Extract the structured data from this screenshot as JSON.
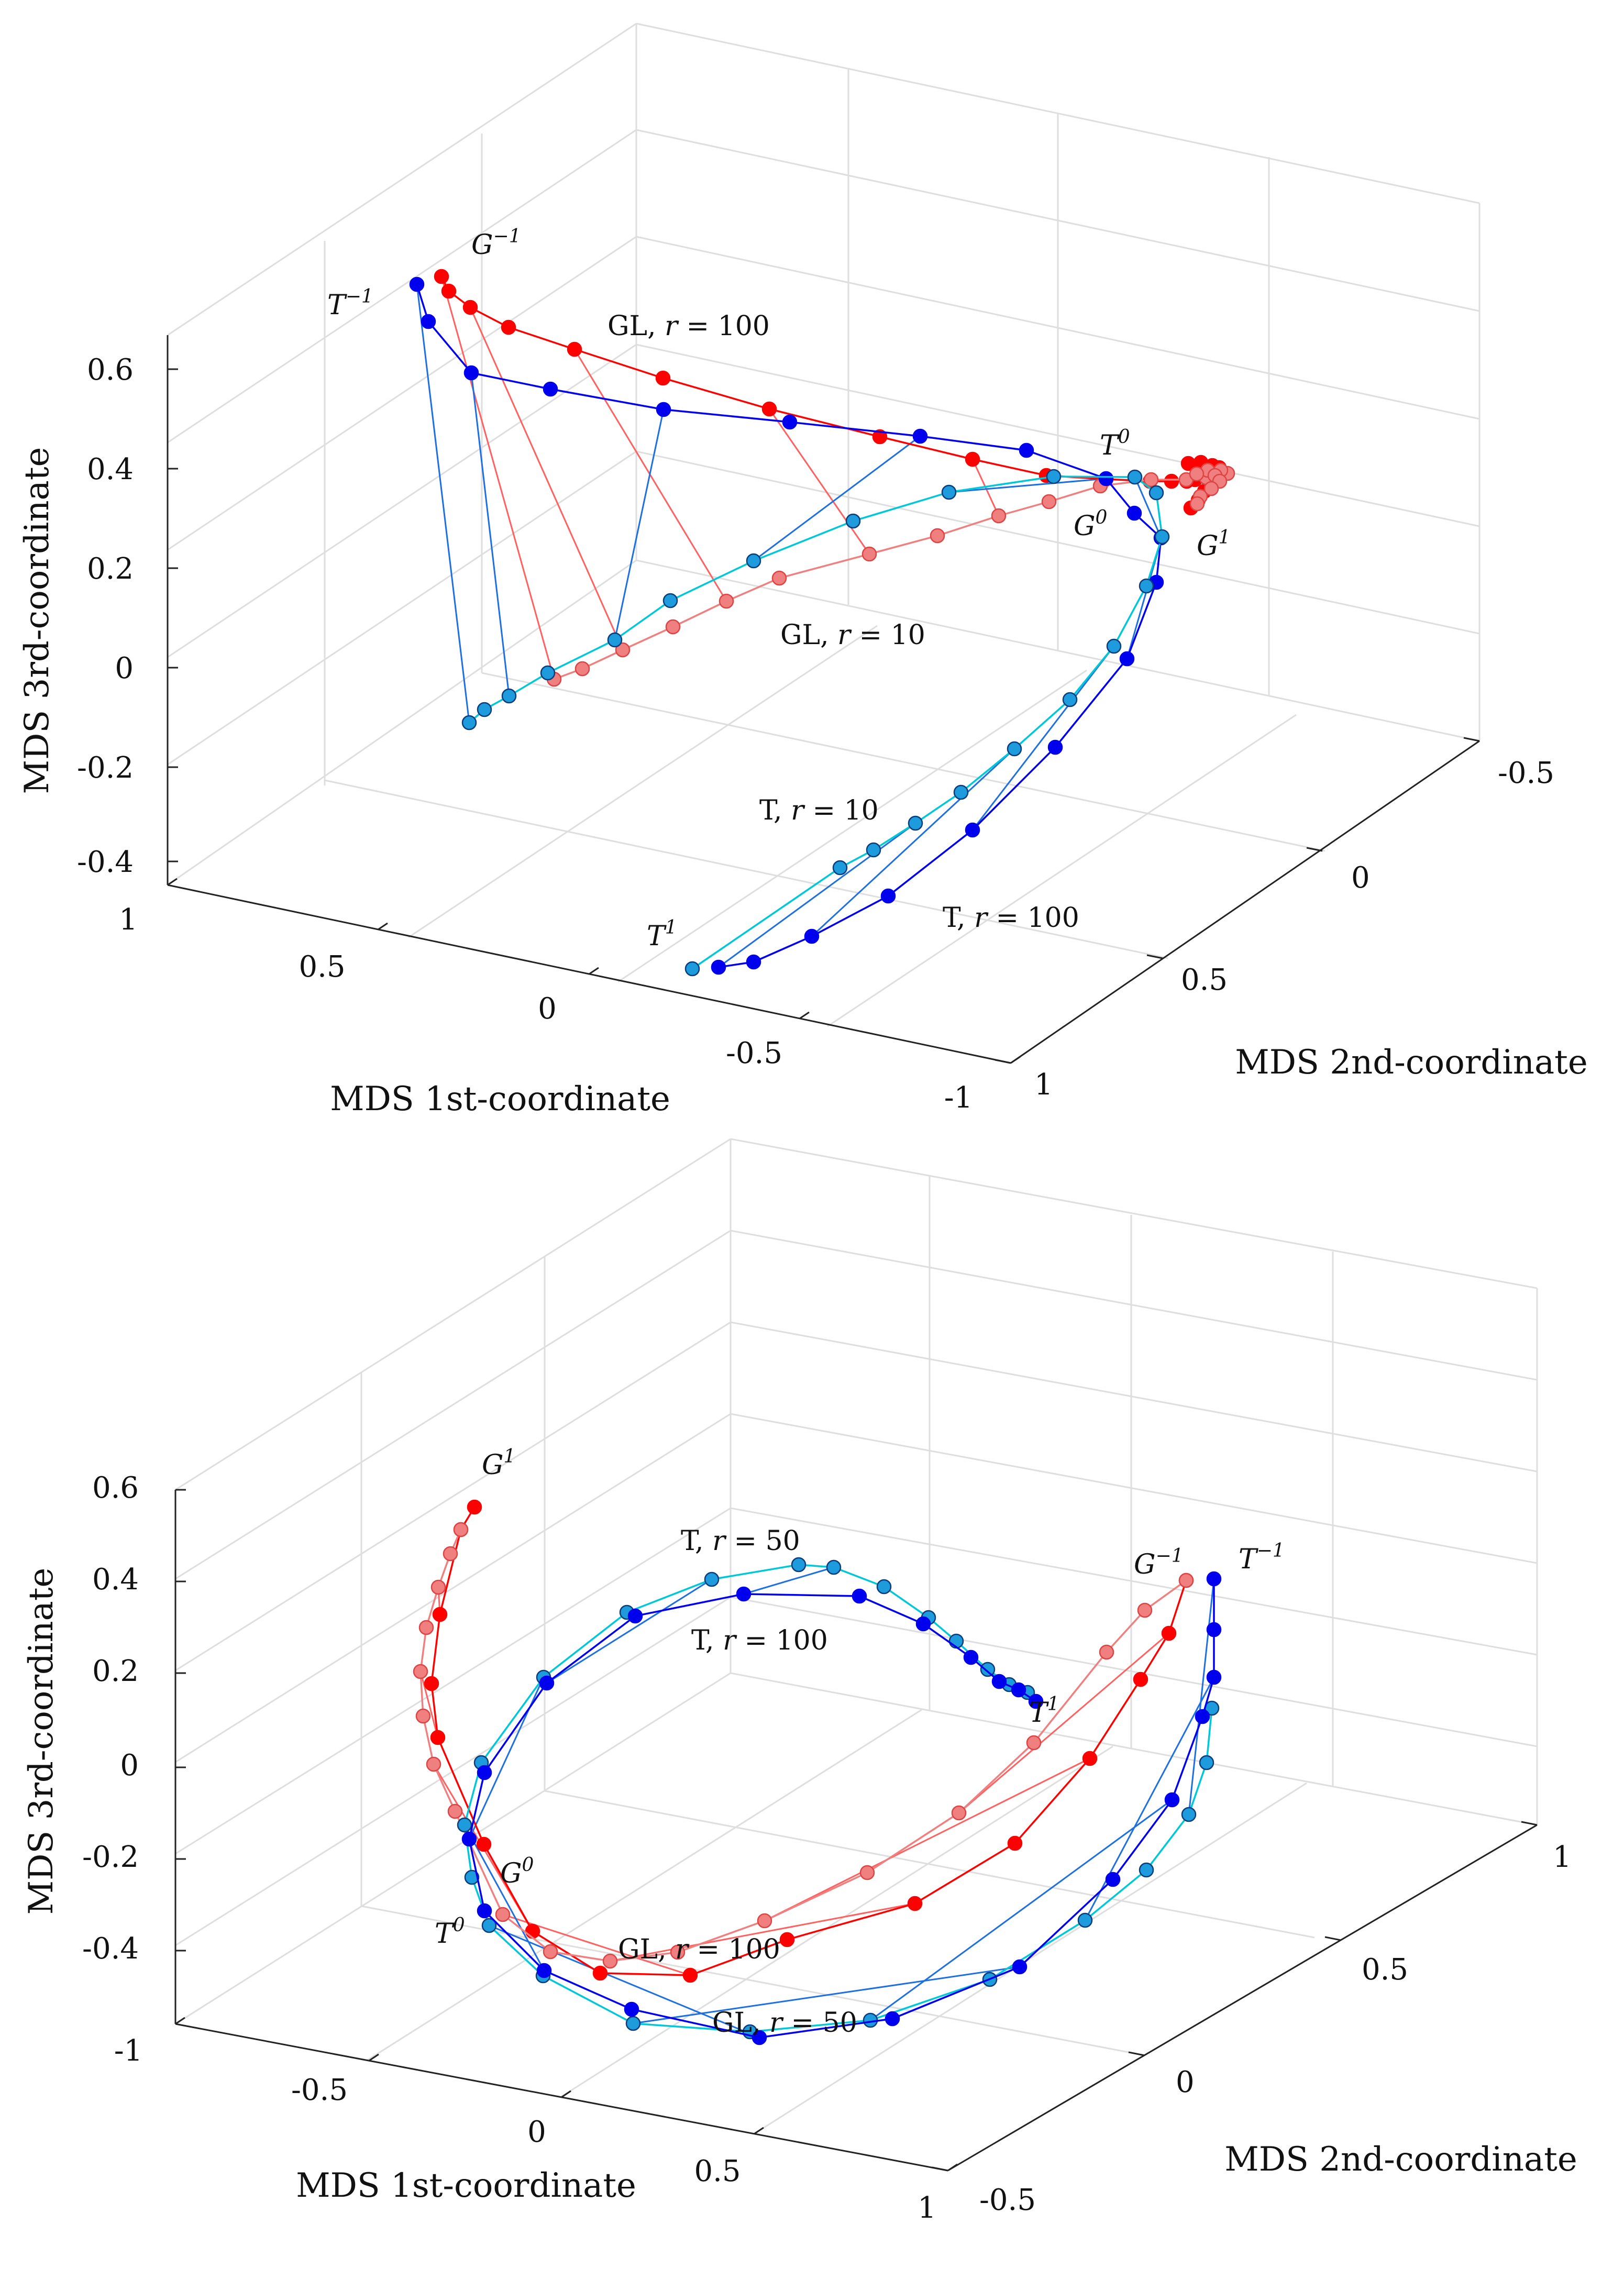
{
  "colors": {
    "gl_high_r": "#ff0000",
    "gl_low_r": "#f08080",
    "t_high_r": "#0000ee",
    "t_low_r": "#1e9bdc",
    "t_low_r_curve": "#00c8d8",
    "gl_link": "#ff6060",
    "t_link": "#1e6fe0",
    "grid": "#dedede",
    "axis": "#222222"
  },
  "chart_data": [
    {
      "type": "scatter",
      "projection": "3d",
      "xlabel": "MDS 1st-coordinate",
      "ylabel": "MDS 2nd-coordinate",
      "zlabel": "MDS 3rd-coordinate",
      "x_ticks": [
        "1",
        "0.5",
        "0",
        "-0.5",
        "-1"
      ],
      "y_ticks": [
        "-0.5",
        "0",
        "0.5",
        "1"
      ],
      "z_ticks": [
        "0.6",
        "0.4",
        "0.2",
        "0",
        "-0.2",
        "-0.4"
      ],
      "grid": true,
      "annotations": {
        "g_end": {
          "base": "G",
          "sup": "−1"
        },
        "t_end": {
          "base": "T",
          "sup": "−1"
        },
        "t_zero": {
          "base": "T",
          "sup": "0"
        },
        "g_zero": {
          "base": "G",
          "sup": "0"
        },
        "g_one": {
          "base": "G",
          "sup": "1"
        },
        "t_one": {
          "base": "T",
          "sup": "1"
        },
        "gl_high": {
          "prefix": "GL, ",
          "var": "r",
          "value": " = 100"
        },
        "gl_low": {
          "prefix": "GL, ",
          "var": "r",
          "value": " = 10"
        },
        "t_low": {
          "prefix": "T, ",
          "var": "r",
          "value": " = 10"
        },
        "t_high": {
          "prefix": "T, ",
          "var": "r",
          "value": " = 100"
        }
      },
      "series": [
        {
          "name": "GL, r = 100",
          "points": [
            [
              843,
              528
            ],
            [
              857,
              556
            ],
            [
              898,
              587
            ],
            [
              971,
              625
            ],
            [
              1097,
              667
            ],
            [
              1266,
              722
            ],
            [
              1469,
              781
            ],
            [
              1680,
              834
            ],
            [
              1857,
              877
            ],
            [
              1998,
              908
            ],
            [
              2112,
              915
            ],
            [
              2196,
              919
            ],
            [
              2237,
              919
            ],
            [
              2266,
              919
            ],
            [
              2282,
              916
            ],
            [
              2303,
              907
            ],
            [
              2327,
              898
            ],
            [
              2328,
              893
            ],
            [
              2315,
              889
            ],
            [
              2293,
              883
            ],
            [
              2269,
              885
            ],
            [
              2310,
              907
            ],
            [
              2319,
              921
            ],
            [
              2300,
              938
            ],
            [
              2288,
              955
            ],
            [
              2274,
              970
            ]
          ]
        },
        {
          "name": "GL, r = 10",
          "points": [
            [
              1058,
              1297
            ],
            [
              1112,
              1277
            ],
            [
              1189,
              1241
            ],
            [
              1285,
              1197
            ],
            [
              1387,
              1148
            ],
            [
              1488,
              1104
            ],
            [
              1660,
              1058
            ],
            [
              1790,
              1023
            ],
            [
              1907,
              985
            ],
            [
              2003,
              958
            ],
            [
              2101,
              928
            ],
            [
              2198,
              916
            ],
            [
              2265,
              916
            ],
            [
              2303,
              912
            ],
            [
              2329,
              909
            ],
            [
              2344,
              904
            ],
            [
              2331,
              898
            ],
            [
              2306,
              898
            ],
            [
              2285,
              905
            ],
            [
              2320,
              908
            ],
            [
              2329,
              919
            ],
            [
              2313,
              933
            ],
            [
              2292,
              948
            ],
            [
              2286,
              962
            ]
          ]
        },
        {
          "name": "T, r = 100",
          "points": [
            [
              796,
              543
            ],
            [
              818,
              614
            ],
            [
              900,
              712
            ],
            [
              1051,
              743
            ],
            [
              1267,
              782
            ],
            [
              1508,
              806
            ],
            [
              1757,
              833
            ],
            [
              1960,
              860
            ],
            [
              2112,
              914
            ],
            [
              2166,
              980
            ],
            [
              2217,
              1027
            ],
            [
              2208,
              1112
            ],
            [
              2152,
              1258
            ],
            [
              2015,
              1427
            ],
            [
              1857,
              1585
            ],
            [
              1696,
              1711
            ],
            [
              1550,
              1788
            ],
            [
              1439,
              1837
            ],
            [
              1372,
              1847
            ]
          ]
        },
        {
          "name": "T, r = 10",
          "points": [
            [
              896,
              1380
            ],
            [
              925,
              1355
            ],
            [
              972,
              1329
            ],
            [
              1046,
              1285
            ],
            [
              1174,
              1222
            ],
            [
              1280,
              1147
            ],
            [
              1439,
              1071
            ],
            [
              1629,
              995
            ],
            [
              1812,
              940
            ],
            [
              2012,
              910
            ],
            [
              2167,
              911
            ],
            [
              2208,
              941
            ],
            [
              2219,
              1025
            ],
            [
              2189,
              1119
            ],
            [
              2127,
              1234
            ],
            [
              2043,
              1336
            ],
            [
              1937,
              1430
            ],
            [
              1835,
              1513
            ],
            [
              1748,
              1572
            ],
            [
              1668,
              1623
            ],
            [
              1604,
              1657
            ],
            [
              1322,
              1850
            ]
          ]
        }
      ]
    },
    {
      "type": "scatter",
      "projection": "3d",
      "xlabel": "MDS 1st-coordinate",
      "ylabel": "MDS 2nd-coordinate",
      "zlabel": "MDS 3rd-coordinate",
      "x_ticks": [
        "-1",
        "-0.5",
        "0",
        "0.5",
        "1"
      ],
      "y_ticks": [
        "1",
        "0.5",
        "0",
        "-0.5"
      ],
      "z_ticks": [
        "0.6",
        "0.4",
        "0.2",
        "0",
        "-0.2",
        "-0.4"
      ],
      "grid": true,
      "annotations": {
        "g_one": {
          "base": "G",
          "sup": "1"
        },
        "g_end": {
          "base": "G",
          "sup": "−1"
        },
        "t_end": {
          "base": "T",
          "sup": "−1"
        },
        "t_one": {
          "base": "T",
          "sup": "1"
        },
        "g_zero": {
          "base": "G",
          "sup": "0"
        },
        "t_zero": {
          "base": "T",
          "sup": "0"
        },
        "t_low": {
          "prefix": "T, ",
          "var": "r",
          "value": " = 50"
        },
        "t_high": {
          "prefix": "T, ",
          "var": "r",
          "value": " = 100"
        },
        "gl_high": {
          "prefix": "GL, ",
          "var": "r",
          "value": " = 100"
        },
        "gl_low": {
          "prefix": "GL, ",
          "var": "r",
          "value": " = 50"
        }
      },
      "series": [
        {
          "name": "GL, r = 100",
          "points": [
            [
              906,
              2878
            ],
            [
              880,
              2921
            ],
            [
              840,
              3083
            ],
            [
              824,
              3215
            ],
            [
              836,
              3318
            ],
            [
              924,
              3522
            ],
            [
              1017,
              3688
            ],
            [
              1146,
              3768
            ],
            [
              1318,
              3772
            ],
            [
              1503,
              3704
            ],
            [
              1747,
              3635
            ],
            [
              1938,
              3520
            ],
            [
              2081,
              3358
            ],
            [
              2178,
              3207
            ],
            [
              2232,
              3119
            ],
            [
              2265,
              3018
            ]
          ]
        },
        {
          "name": "GL, r = 50",
          "points": [
            [
              880,
              2921
            ],
            [
              860,
              2967
            ],
            [
              837,
              3031
            ],
            [
              814,
              3108
            ],
            [
              803,
              3192
            ],
            [
              808,
              3277
            ],
            [
              828,
              3369
            ],
            [
              869,
              3459
            ],
            [
              960,
              3656
            ],
            [
              1051,
              3727
            ],
            [
              1165,
              3745
            ],
            [
              1294,
              3728
            ],
            [
              1460,
              3668
            ],
            [
              1656,
              3576
            ],
            [
              1831,
              3462
            ],
            [
              1974,
              3328
            ],
            [
              2113,
              3155
            ],
            [
              2186,
              3075
            ],
            [
              2265,
              3018
            ]
          ]
        },
        {
          "name": "T, r = 50",
          "points": [
            [
              1962,
              3232
            ],
            [
              1927,
              3217
            ],
            [
              1886,
              3188
            ],
            [
              1826,
              3134
            ],
            [
              1773,
              3089
            ],
            [
              1688,
              3030
            ],
            [
              1592,
              2993
            ],
            [
              1525,
              2988
            ],
            [
              1359,
              3016
            ],
            [
              1197,
              3079
            ],
            [
              1038,
              3203
            ],
            [
              919,
              3366
            ],
            [
              887,
              3485
            ],
            [
              901,
              3585
            ],
            [
              934,
              3677
            ],
            [
              1037,
              3773
            ],
            [
              1209,
              3864
            ],
            [
              1432,
              3880
            ],
            [
              1662,
              3858
            ],
            [
              1890,
              3780
            ],
            [
              2072,
              3667
            ],
            [
              2189,
              3571
            ],
            [
              2270,
              3465
            ],
            [
              2304,
              3366
            ],
            [
              2314,
              3262
            ]
          ]
        },
        {
          "name": "T, r = 100",
          "points": [
            [
              1978,
              3249
            ],
            [
              1945,
              3227
            ],
            [
              1908,
              3211
            ],
            [
              1854,
              3165
            ],
            [
              1763,
              3101
            ],
            [
              1641,
              3048
            ],
            [
              1420,
              3044
            ],
            [
              1213,
              3086
            ],
            [
              1044,
              3214
            ],
            [
              925,
              3385
            ],
            [
              896,
              3512
            ],
            [
              925,
              3649
            ],
            [
              1039,
              3763
            ],
            [
              1206,
              3837
            ],
            [
              1450,
              3891
            ],
            [
              1704,
              3855
            ],
            [
              1947,
              3756
            ],
            [
              2125,
              3589
            ],
            [
              2238,
              3437
            ],
            [
              2296,
              3278
            ],
            [
              2318,
              3203
            ],
            [
              2318,
              3112
            ],
            [
              2318,
              3015
            ]
          ]
        }
      ]
    }
  ]
}
